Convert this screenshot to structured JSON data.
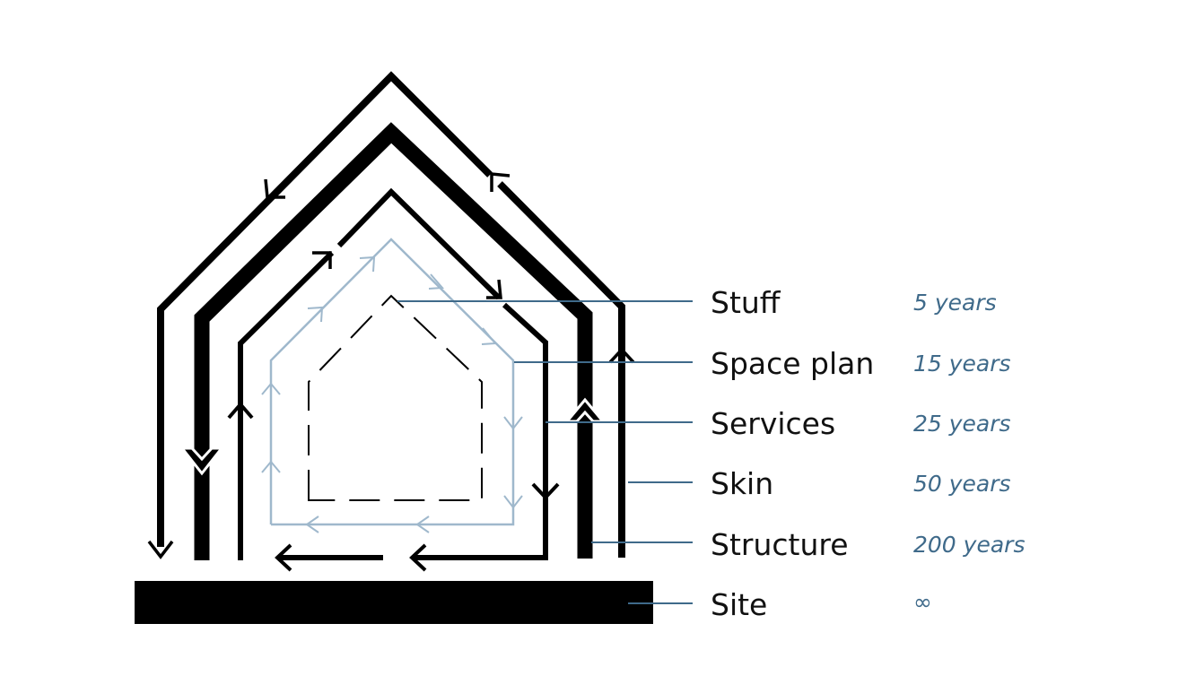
{
  "layers": [
    {
      "id": "stuff",
      "label": "Stuff",
      "years": "5 years"
    },
    {
      "id": "space-plan",
      "label": "Space plan",
      "years": "15 years"
    },
    {
      "id": "services",
      "label": "Services",
      "years": "25 years"
    },
    {
      "id": "skin",
      "label": "Skin",
      "years": "50 years"
    },
    {
      "id": "structure",
      "label": "Structure",
      "years": "200 years"
    },
    {
      "id": "site",
      "label": "Site",
      "years": "∞"
    }
  ],
  "colors": {
    "ink": "#000000",
    "services": "#9fb8cc",
    "leader": "#3f6a8a",
    "years": "#3f6a8a"
  }
}
